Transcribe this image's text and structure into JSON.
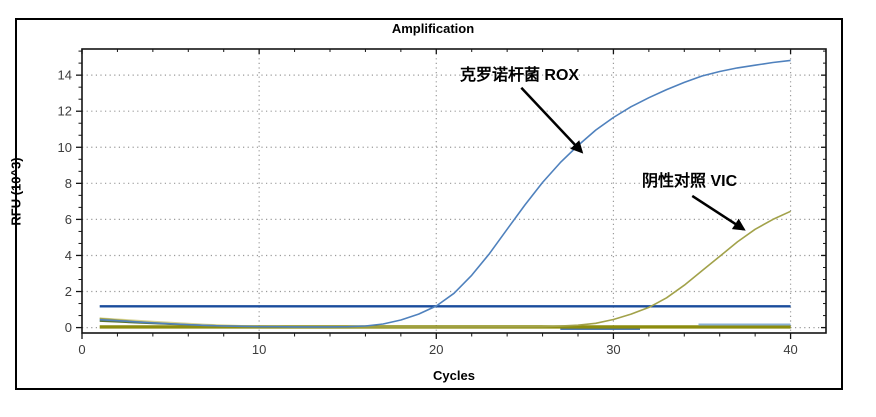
{
  "figure": {
    "title": "Amplification",
    "xlabel": "Cycles",
    "ylabel": "RFU (10^3)"
  },
  "chart_data": {
    "type": "line",
    "title": "Amplification",
    "xlabel": "Cycles",
    "ylabel": "RFU (10^3)",
    "xlim": [
      0,
      42
    ],
    "ylim": [
      -0.3,
      15.45
    ],
    "x_major_ticks": [
      0,
      10,
      20,
      30,
      40
    ],
    "x_minor_step": 2,
    "y_major_ticks": [
      0,
      2,
      4,
      6,
      8,
      10,
      12,
      14
    ],
    "y_minor_divisions": 3,
    "grid": {
      "style": "dotted",
      "color": "#9a9a9a",
      "x_at": [
        10,
        20,
        30,
        40
      ],
      "y_at": [
        0,
        2,
        4,
        6,
        8,
        10,
        12,
        14
      ]
    },
    "colors": {
      "rox_curve": "#4f81bd",
      "vic_curve": "#a2a24a",
      "rox_threshold": "#1a4c9c",
      "vic_threshold": "#8c8c0e"
    },
    "series": [
      {
        "name": "baseline-trace-yellow",
        "color": "#d8d494",
        "width": 1.6,
        "x": [
          1,
          2,
          3,
          4,
          5,
          6,
          7,
          8,
          9,
          10,
          11,
          12,
          40
        ],
        "y": [
          0.52,
          0.46,
          0.4,
          0.34,
          0.28,
          0.22,
          0.17,
          0.13,
          0.1,
          0.08,
          0.07,
          0.06,
          0.05
        ]
      },
      {
        "name": "baseline-trace-green",
        "color": "#5a7434",
        "width": 1.6,
        "x": [
          1,
          2,
          3,
          4,
          5,
          6,
          7,
          8,
          9,
          10,
          11,
          12,
          40
        ],
        "y": [
          0.36,
          0.32,
          0.27,
          0.23,
          0.19,
          0.15,
          0.12,
          0.09,
          0.07,
          0.06,
          0.05,
          0.04,
          0.04
        ]
      },
      {
        "name": "flat-trace-blue-low",
        "color": "#3c6ca8",
        "width": 2,
        "x": [
          27,
          31.5
        ],
        "y": [
          -0.07,
          -0.07
        ]
      },
      {
        "name": "vic-threshold",
        "color": "#8c8c0e",
        "width": 3.4,
        "x": [
          1,
          40
        ],
        "y": [
          0.04,
          0.04
        ]
      },
      {
        "name": "flat-trace-blue-high",
        "color": "#8ab0d4",
        "width": 2,
        "x": [
          34.8,
          40
        ],
        "y": [
          0.17,
          0.17
        ]
      },
      {
        "name": "rox-threshold",
        "color": "#1a4c9c",
        "width": 2.4,
        "x": [
          1,
          40
        ],
        "y": [
          1.18,
          1.18
        ]
      },
      {
        "name": "negative-control-vic",
        "label": "阴性对照 VIC",
        "color": "#a2a24a",
        "width": 1.6,
        "x": [
          1,
          2,
          3,
          4,
          5,
          6,
          7,
          8,
          9,
          10,
          11,
          12,
          20,
          26,
          27,
          28,
          29,
          30,
          31,
          32,
          33,
          34,
          35,
          36,
          37,
          38,
          39,
          40
        ],
        "y": [
          0.5,
          0.42,
          0.34,
          0.27,
          0.21,
          0.16,
          0.12,
          0.09,
          0.07,
          0.06,
          0.05,
          0.04,
          0.04,
          0.05,
          0.08,
          0.13,
          0.24,
          0.45,
          0.75,
          1.12,
          1.65,
          2.35,
          3.15,
          3.95,
          4.75,
          5.45,
          6.0,
          6.45
        ]
      },
      {
        "name": "cronobacter-rox",
        "label": "克罗诺杆菌 ROX",
        "color": "#4f81bd",
        "width": 1.6,
        "x": [
          1,
          2,
          3,
          4,
          5,
          6,
          7,
          8,
          9,
          10,
          11,
          12,
          13,
          14,
          15,
          16,
          17,
          18,
          19,
          20,
          21,
          22,
          23,
          24,
          25,
          26,
          27,
          28,
          29,
          30,
          31,
          32,
          33,
          34,
          35,
          36,
          37,
          38,
          39,
          40
        ],
        "y": [
          0.44,
          0.38,
          0.32,
          0.26,
          0.21,
          0.16,
          0.12,
          0.09,
          0.07,
          0.05,
          0.05,
          0.04,
          0.04,
          0.04,
          0.05,
          0.09,
          0.2,
          0.42,
          0.75,
          1.2,
          1.9,
          2.9,
          4.1,
          5.45,
          6.8,
          8.05,
          9.15,
          10.1,
          10.95,
          11.65,
          12.25,
          12.75,
          13.2,
          13.6,
          13.95,
          14.2,
          14.4,
          14.55,
          14.7,
          14.82
        ]
      }
    ],
    "annotations": [
      {
        "text": "克罗诺杆菌 ROX",
        "x": 24.7,
        "y": 14.1,
        "arrow": {
          "x1": 24.8,
          "y1": 13.3,
          "x2": 28.2,
          "y2": 9.75
        }
      },
      {
        "text": "阴性对照 VIC",
        "x": 34.3,
        "y": 8.25,
        "arrow": {
          "x1": 34.45,
          "y1": 7.3,
          "x2": 37.35,
          "y2": 5.45
        }
      }
    ]
  }
}
